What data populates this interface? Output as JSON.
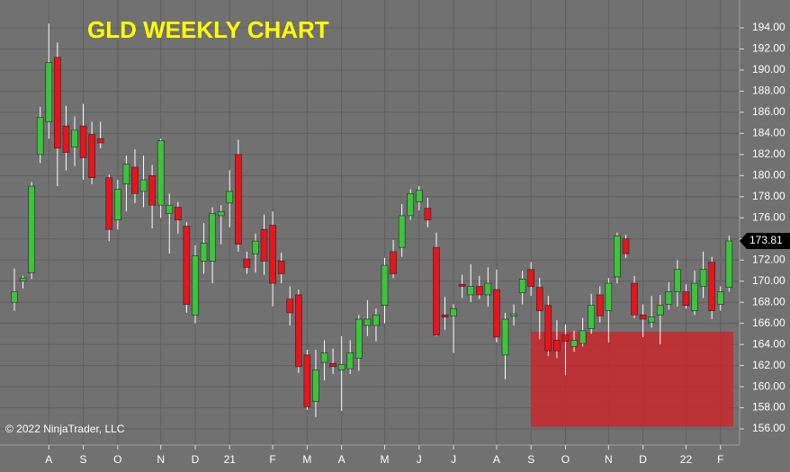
{
  "chart_data": {
    "type": "candlestick",
    "title": "GLD WEEKLY CHART",
    "copyright": "© 2022 NinjaTrader, LLC",
    "categories": [
      null,
      null,
      null,
      null,
      "A",
      null,
      null,
      null,
      "S",
      null,
      null,
      null,
      "O",
      null,
      null,
      null,
      null,
      "N",
      null,
      null,
      null,
      "D",
      null,
      null,
      null,
      "21",
      null,
      null,
      null,
      null,
      "F",
      null,
      null,
      null,
      "M",
      null,
      null,
      null,
      "A",
      null,
      null,
      null,
      null,
      "M",
      null,
      null,
      null,
      "J",
      null,
      null,
      null,
      "J",
      null,
      null,
      null,
      null,
      "A",
      null,
      null,
      null,
      "S",
      null,
      null,
      null,
      "O",
      null,
      null,
      null,
      null,
      "N",
      null,
      null,
      null,
      "D",
      null,
      null,
      null,
      null,
      "22",
      null,
      null,
      null,
      "F",
      null
    ],
    "open": [
      168,
      170,
      170.8,
      182,
      185.1,
      191.2,
      184.7,
      182.7,
      184.7,
      183.9,
      183.5,
      179.8,
      175.8,
      179.2,
      180.8,
      178.5,
      180,
      177.2,
      176.4,
      177,
      175.2,
      166.8,
      171.9,
      171.9,
      176.2,
      177.4,
      182,
      172.1,
      172.6,
      174.9,
      175.3,
      171.9,
      168.3,
      168.7,
      163,
      158.6,
      162.3,
      162.2,
      161.6,
      161.7,
      162.7,
      165.8,
      165.8,
      167.7,
      172.8,
      173.2,
      176.2,
      177.5,
      176.9,
      173.2,
      166.8,
      166.7,
      169.7,
      168.7,
      169.5,
      168.7,
      169.2,
      163,
      166.7,
      168.9,
      171.1,
      169.4,
      167.7,
      164.4,
      164.9,
      163.8,
      164.1,
      165.5,
      168.7,
      167.2,
      170.4,
      174,
      169.8,
      166.8,
      166.1,
      166.8,
      167.8,
      169,
      169,
      167.2,
      169.5,
      171.8,
      167.8,
      169.4
    ],
    "high": [
      171.2,
      170.5,
      179.4,
      186.5,
      194.4,
      192.6,
      186.6,
      185.6,
      186.8,
      185.1,
      185.1,
      180.1,
      179.6,
      181.9,
      182.5,
      181.9,
      181,
      183.5,
      178.3,
      177.5,
      175.6,
      173.4,
      175.5,
      177,
      177.2,
      180.5,
      183.4,
      172.8,
      174.5,
      176.3,
      176.6,
      172.7,
      169.5,
      169.2,
      163.5,
      163.5,
      164.4,
      163.6,
      164.8,
      164.4,
      166.8,
      168.2,
      167.4,
      172.2,
      173.9,
      177.3,
      178.7,
      179,
      177.9,
      174.6,
      168.5,
      167.8,
      170.6,
      171.6,
      170.5,
      171.3,
      171.1,
      167,
      167.8,
      171,
      171.8,
      170.3,
      168.6,
      166.3,
      165.9,
      165.3,
      166.5,
      168.8,
      169.5,
      170.3,
      174.6,
      174.4,
      170.5,
      167.8,
      168.6,
      168.7,
      169.9,
      172,
      169.7,
      171,
      172.8,
      172.3,
      169.5,
      174.3
    ],
    "low": [
      167.2,
      169.3,
      170.2,
      181.2,
      183.5,
      179,
      180.5,
      180.9,
      179.6,
      179.2,
      182.6,
      173.8,
      174.9,
      176.6,
      177.4,
      177,
      175,
      176,
      172.6,
      174.5,
      167,
      166,
      170.7,
      169.8,
      173.5,
      175.1,
      172.8,
      170.7,
      170.8,
      170.6,
      167.6,
      169.8,
      165.8,
      161.3,
      157.8,
      157.1,
      160.6,
      161.2,
      157.7,
      161.2,
      161.5,
      164.8,
      164.3,
      166,
      170.3,
      172.3,
      175.8,
      176.7,
      175.1,
      164.8,
      165.4,
      163.2,
      168.4,
      168,
      168.3,
      167.6,
      164.2,
      160.7,
      165.8,
      167.8,
      168.6,
      164.5,
      162.9,
      162.7,
      161.1,
      163.3,
      163.8,
      165,
      166.1,
      164.2,
      169.8,
      172.2,
      166.5,
      164.7,
      165.6,
      164,
      167.3,
      167.6,
      167.4,
      166.8,
      168.4,
      166.4,
      167.2,
      169
    ],
    "close": [
      169,
      170.3,
      179,
      185.5,
      190.7,
      182.6,
      182.2,
      184.3,
      181.7,
      179.8,
      183.1,
      174.9,
      178.7,
      181.1,
      178.3,
      179.6,
      177.2,
      183.3,
      177.2,
      175.8,
      167.8,
      172.4,
      173.6,
      176.4,
      176.6,
      178.5,
      173.5,
      171.3,
      173.8,
      171.9,
      169.8,
      170.7,
      167,
      161.9,
      158.1,
      161.6,
      163.2,
      161.9,
      162.1,
      163.2,
      166.4,
      166.4,
      166.8,
      171.5,
      170.7,
      176.2,
      178.3,
      178.6,
      175.8,
      164.9,
      166.6,
      167.4,
      169.5,
      169.5,
      168.7,
      169.8,
      164.7,
      166.4,
      166.9,
      170.2,
      169.5,
      167.2,
      163.4,
      163.4,
      164.3,
      164.4,
      165.3,
      167.7,
      166.7,
      169.8,
      174.3,
      172.6,
      166.8,
      166.4,
      166.6,
      167.7,
      169,
      171.1,
      167.7,
      169.8,
      171.1,
      167.2,
      169,
      173.81
    ],
    "up_color": "#3cc43c",
    "down_color": "#e8141c",
    "last_price": 173.81,
    "zone": {
      "low": 156.2,
      "high": 165.2,
      "start": 60,
      "color": "#c8282c"
    },
    "ylim": [
      154.47,
      196.64
    ],
    "yticks": [
      {
        "value": 156,
        "label": "156.00"
      },
      {
        "value": 158,
        "label": "158.00"
      },
      {
        "value": 160,
        "label": "160.00"
      },
      {
        "value": 162,
        "label": "162.00"
      },
      {
        "value": 164,
        "label": "164.00"
      },
      {
        "value": 166,
        "label": "166.00"
      },
      {
        "value": 168,
        "label": "168.00"
      },
      {
        "value": 170,
        "label": "170.00"
      },
      {
        "value": 172,
        "label": "172.00"
      },
      {
        "value": 174,
        "label": "174.00"
      },
      {
        "value": 176,
        "label": "176.00"
      },
      {
        "value": 178,
        "label": "178.00"
      },
      {
        "value": 180,
        "label": "180.00"
      },
      {
        "value": 182,
        "label": "182.00"
      },
      {
        "value": 184,
        "label": "184.00"
      },
      {
        "value": 186,
        "label": "186.00"
      },
      {
        "value": 188,
        "label": "188.00"
      },
      {
        "value": 190,
        "label": "190.00"
      },
      {
        "value": 192,
        "label": "192.00"
      },
      {
        "value": 194,
        "label": "194.00"
      }
    ],
    "grid": true
  }
}
